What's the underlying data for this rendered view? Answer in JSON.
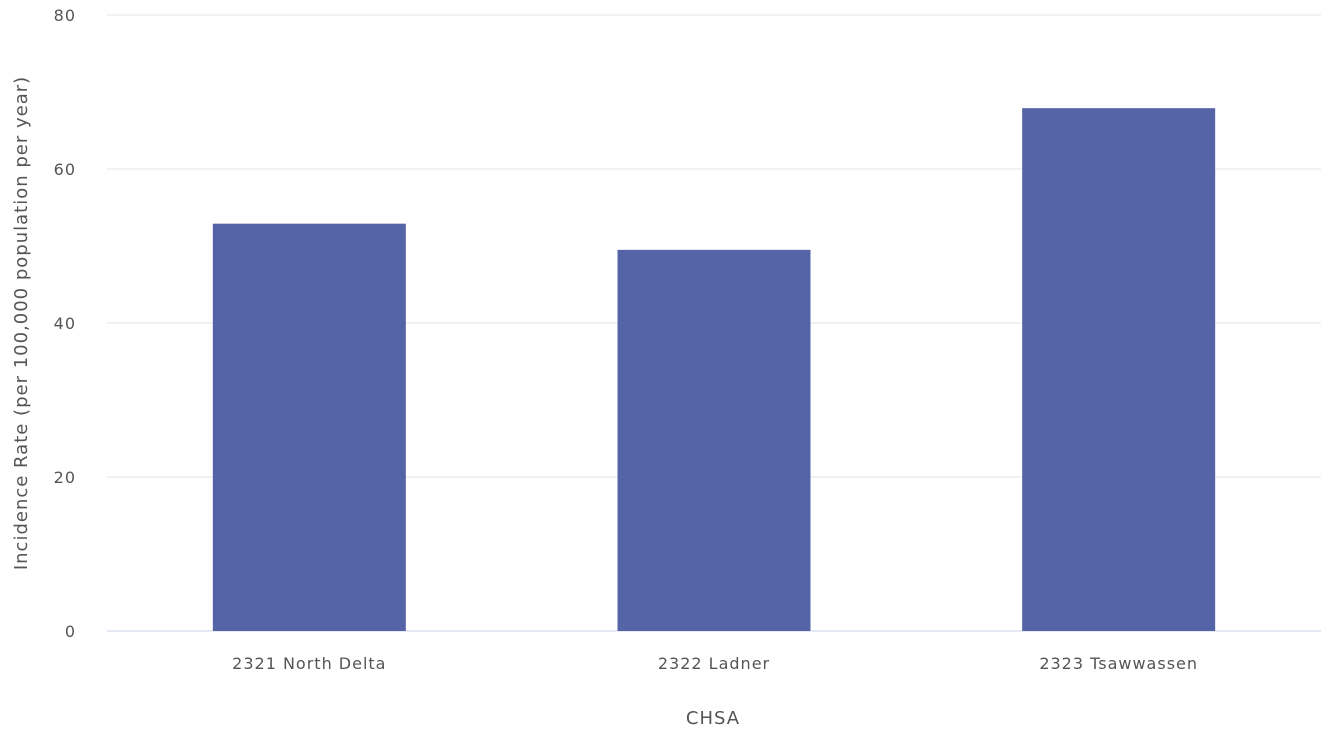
{
  "chart_data": {
    "type": "bar",
    "categories": [
      "2321 North Delta",
      "2322 Ladner",
      "2323 Tsawwassen"
    ],
    "values": [
      52.9,
      49.5,
      67.9
    ],
    "xlabel": "CHSA",
    "ylabel": "Incidence Rate (per 100,000 population per year)",
    "ylim": [
      0,
      80
    ],
    "yticks": [
      0,
      20,
      40,
      60,
      80
    ],
    "grid": true,
    "colors": {
      "bar": "#5464a6",
      "grid": "#e6e6e6",
      "baseline": "#ccd6eb",
      "text": "#555555"
    }
  }
}
